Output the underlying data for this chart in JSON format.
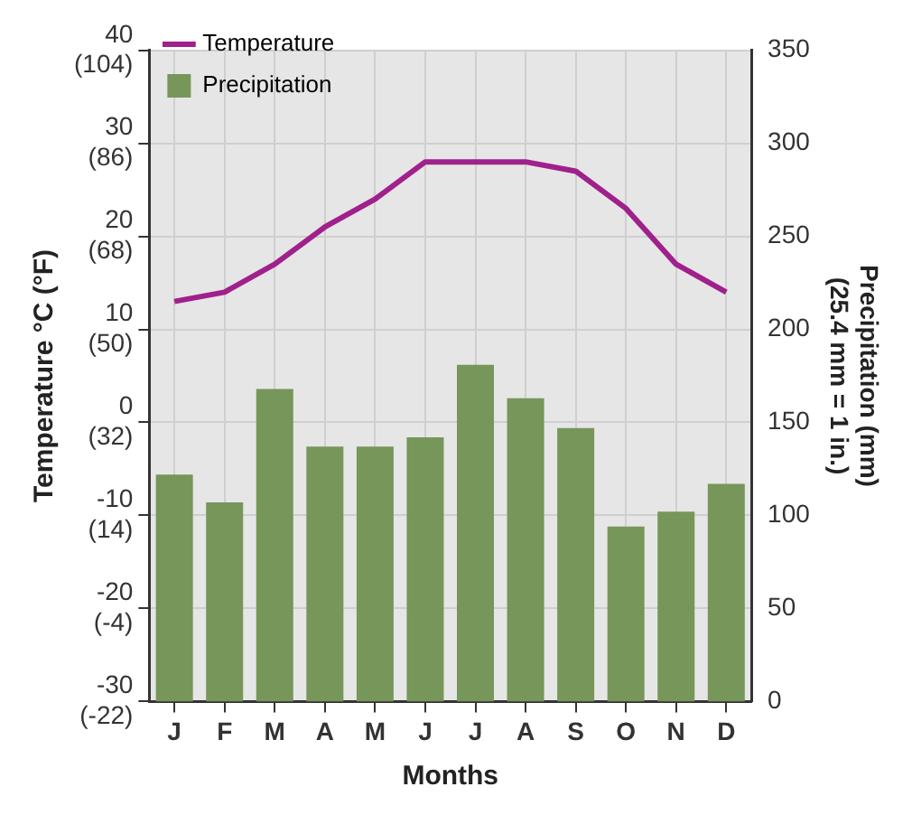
{
  "chart_data": {
    "type": "bar",
    "xlabel": "Months",
    "ylabel": "Temperature °C (°F)",
    "y2label": "Precipitation (mm)\n(25.4 mm = 1 in.)",
    "categories": [
      "J",
      "F",
      "M",
      "A",
      "M",
      "J",
      "J",
      "A",
      "S",
      "O",
      "N",
      "D"
    ],
    "series": [
      {
        "name": "Temperature",
        "type": "line",
        "color": "#a0208c",
        "values": [
          13,
          14,
          17,
          21,
          24,
          28,
          28,
          28,
          27,
          23,
          17,
          14
        ]
      },
      {
        "name": "Precipitation",
        "axis": "y2",
        "color": "#76965a",
        "values": [
          122,
          107,
          168,
          137,
          137,
          142,
          181,
          163,
          147,
          94,
          102,
          117
        ]
      }
    ],
    "ylim": [
      -30,
      40
    ],
    "yticks": [
      -30,
      -20,
      -10,
      0,
      10,
      20,
      30,
      40
    ],
    "y3lim": [
      -22,
      104
    ],
    "y3ticks": [
      {
        "value": -22,
        "label": "(-22)"
      },
      {
        "value": -4,
        "label": "(-4)"
      },
      {
        "value": 14,
        "label": "(14)"
      },
      {
        "value": 32,
        "label": "(32)"
      },
      {
        "value": 50,
        "label": "(50)"
      },
      {
        "value": 68,
        "label": "(68)"
      },
      {
        "value": 86,
        "label": "(86)"
      },
      {
        "value": 104,
        "label": "(104)"
      }
    ],
    "y2lim": [
      0,
      350
    ],
    "y2ticks": [
      0,
      50,
      100,
      150,
      200,
      250,
      300,
      350
    ],
    "grid": true,
    "legend": "top left",
    "marker": "none",
    "line_style": "solid"
  }
}
